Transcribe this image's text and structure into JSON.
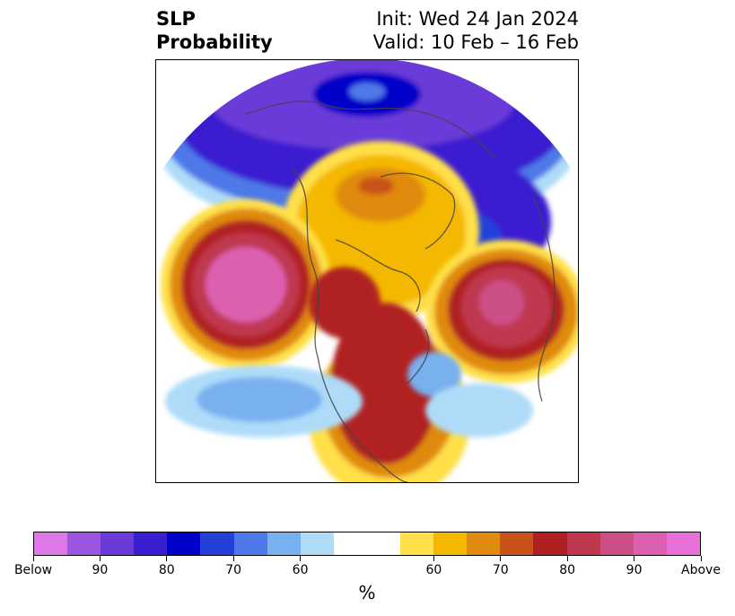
{
  "title": {
    "left_line1": "SLP",
    "left_line2": "Probability",
    "right_line1": "Init: Wed 24 Jan 2024",
    "right_line2": "Valid: 10 Feb – 16 Feb"
  },
  "colorbar": {
    "colors": [
      "#dc78e8",
      "#9b55e0",
      "#6a3bd8",
      "#3a1fd0",
      "#0000c8",
      "#2440d8",
      "#4f78e8",
      "#78b0f0",
      "#aedcf8",
      "#ffffff",
      "#ffffff",
      "#ffe04a",
      "#f4b800",
      "#e08a10",
      "#c85218",
      "#b02020",
      "#c03850",
      "#cc4f88",
      "#dd60b0",
      "#e870d8"
    ],
    "tick_labels": [
      "Below",
      "90",
      "80",
      "70",
      "60",
      "60",
      "70",
      "80",
      "90",
      "Above"
    ],
    "unit": "%"
  },
  "map": {
    "projection": "north polar stereographic",
    "anomaly_regions": [
      {
        "region": "Arctic / Greenland high-latitude cap",
        "category": "below",
        "level": "90+"
      },
      {
        "region": "Barents / Scandinavia",
        "category": "below",
        "level": "80"
      },
      {
        "region": "Hudson Bay / Northern Canada",
        "category": "above",
        "level": "70"
      },
      {
        "region": "North Pacific / Bering",
        "category": "above",
        "level": "90+"
      },
      {
        "region": "Western Europe / Eastern Atlantic",
        "category": "above",
        "level": "90"
      },
      {
        "region": "Eastern United States",
        "category": "above",
        "level": "80"
      },
      {
        "region": "Central Atlantic",
        "category": "below",
        "level": "60"
      },
      {
        "region": "Western Pacific near Japan",
        "category": "below",
        "level": "70"
      }
    ]
  }
}
